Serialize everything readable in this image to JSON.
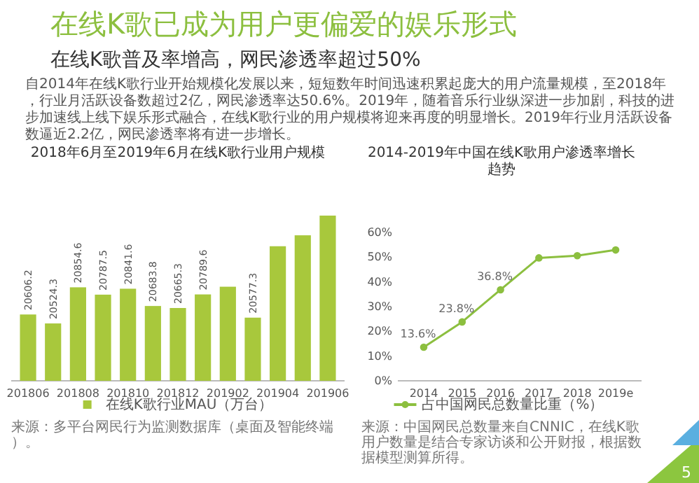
{
  "chart_data": [
    {
      "type": "other",
      "title": "在线K歌已成为用户更偏爱的娱乐形式",
      "subtitle": "在线K歌普及率增高，网民渗透率超过50%",
      "annotations": [
        "自2014年在线K歌行业开始规模化发展以来，短短数年时间迅速积累起庞大的用户流量规模，至2018年，行业月活跃设备数超过2亿，网民渗透率达50.6%。2019年，随着音乐行业纵深进一步加剧，科技的进步加速线上线下娱乐形式融合，在线K歌行业的用户规模将迎来再度的明显增长。2019年行业月活跃设备数逼近2.2亿，网民渗透率将有进一步增长。",
        "5"
      ]
    },
    {
      "type": "bar",
      "title": "2018年6月至2019年6月在线K歌行业用户规模",
      "categories": [
        "201806",
        null,
        "201808",
        null,
        "201810",
        null,
        "201812",
        null,
        "201902",
        null,
        "201904",
        null,
        "201906"
      ],
      "series": [
        {
          "name": "在线K歌行业MAU（万台）",
          "color": "#a8c83c",
          "values": [
            20606.2,
            20524.3,
            20854.6,
            20787.5,
            20841.6,
            20683.8,
            20665.3,
            20789.6,
            20860,
            20577.3,
            21230,
            21330,
            21510
          ],
          "value_labels": [
            "20606.2",
            "20524.3",
            "20854.6",
            "20787.5",
            "20841.6",
            "20683.8",
            "20665.3",
            "20789.6",
            null,
            "20577.3",
            null,
            null,
            null
          ]
        }
      ],
      "ylim": [
        20000,
        21510
      ],
      "tick_labels": "x",
      "legend": "bottom",
      "annotations": [
        "来源：多平台网民行为监测数据库（桌面及智能终端）。"
      ]
    },
    {
      "type": "line",
      "title": "2014-2019年中国在线K歌用户渗透率增长趋势",
      "categories": [
        "2014",
        "2015",
        "2016",
        "2017",
        "2018",
        "2019e"
      ],
      "series": [
        {
          "name": "占中国网民总数量比重（%）",
          "color": "#8cbf3f",
          "values": [
            13.6,
            23.8,
            36.8,
            49.7,
            50.6,
            52.9
          ],
          "value_labels": [
            "13.6%",
            "23.8%",
            "36.8%",
            null,
            null,
            null
          ]
        }
      ],
      "ylim": [
        0,
        60
      ],
      "yticks": [
        {
          "value": 0,
          "label": "0%"
        },
        {
          "value": 10,
          "label": "10%"
        },
        {
          "value": 20,
          "label": "20%"
        },
        {
          "value": 30,
          "label": "30%"
        },
        {
          "value": 40,
          "label": "40%"
        },
        {
          "value": 50,
          "label": "50%"
        },
        {
          "value": 60,
          "label": "60%"
        }
      ],
      "marker": "circle",
      "legend": "bottom",
      "annotations": [
        "来源：中国网民总数量来自CNNIC，在线K歌用户数量是结合专家访谈和公开财报，根据数据模型测算所得。"
      ]
    }
  ]
}
